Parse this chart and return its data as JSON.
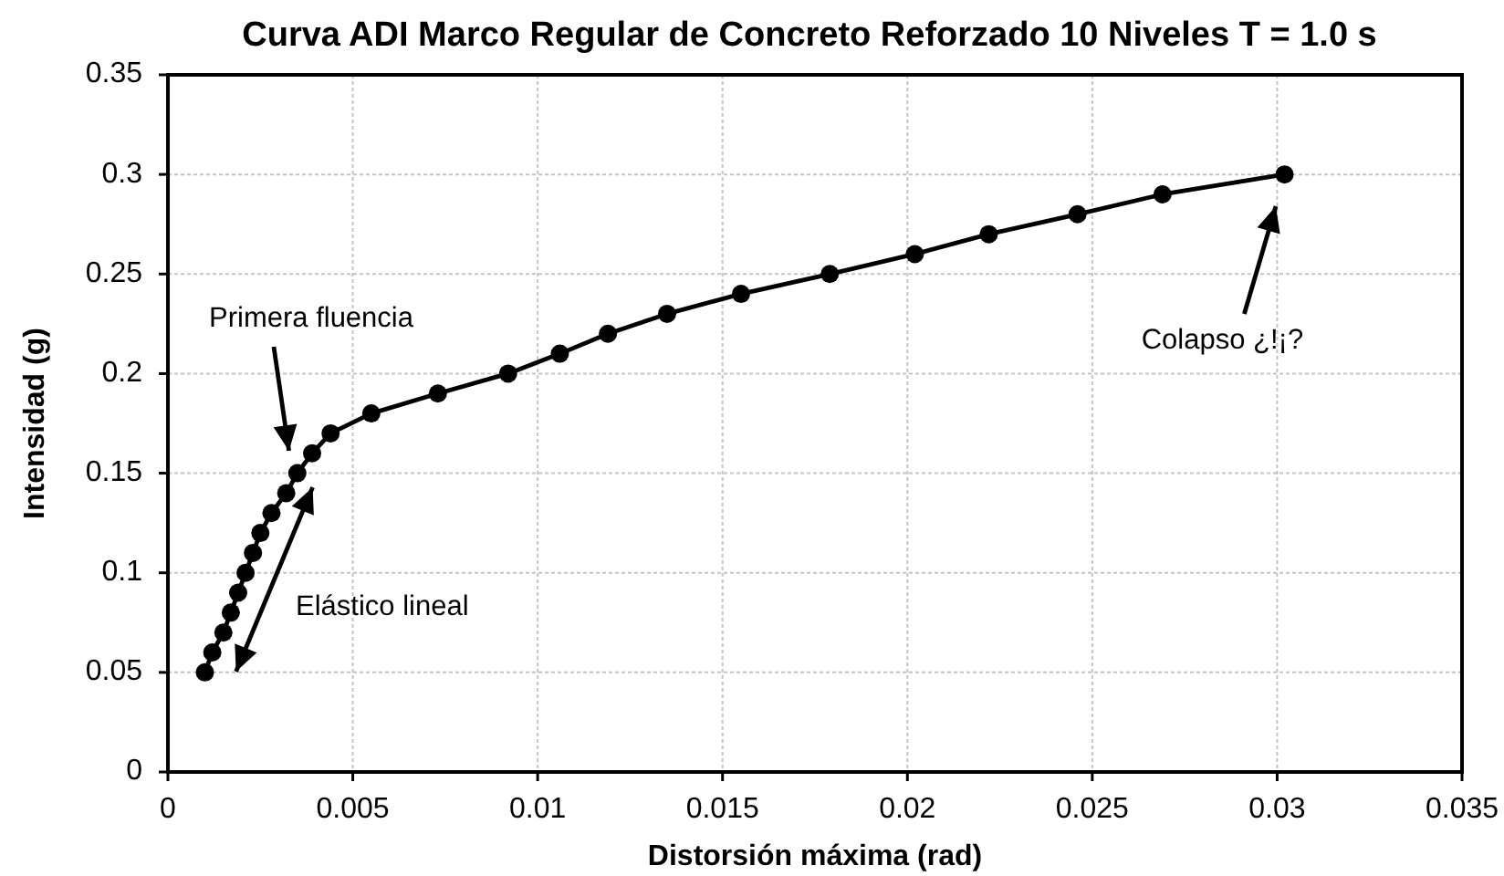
{
  "chart_data": {
    "type": "line",
    "title": "Curva ADI Marco Regular de Concreto Reforzado 10 Niveles T = 1.0 s",
    "xlabel": "Distorsión máxima (rad)",
    "ylabel": "Intensidad (g)",
    "x": [
      0.001,
      0.0012,
      0.0015,
      0.0017,
      0.0019,
      0.0021,
      0.0023,
      0.0025,
      0.0028,
      0.0032,
      0.0035,
      0.0039,
      0.0044,
      0.0055,
      0.0073,
      0.0092,
      0.0106,
      0.0119,
      0.0135,
      0.0155,
      0.0179,
      0.0202,
      0.0222,
      0.0246,
      0.0269,
      0.0302
    ],
    "series": [
      {
        "color": "#000000",
        "values": [
          0.05,
          0.06,
          0.07,
          0.08,
          0.09,
          0.1,
          0.11,
          0.12,
          0.13,
          0.14,
          0.15,
          0.16,
          0.17,
          0.18,
          0.19,
          0.2,
          0.21,
          0.22,
          0.23,
          0.24,
          0.25,
          0.26,
          0.27,
          0.28,
          0.29,
          0.3
        ]
      }
    ],
    "xlim": [
      0,
      0.035
    ],
    "ylim": [
      0,
      0.35
    ],
    "xticks": [
      0,
      0.005,
      0.01,
      0.015,
      0.02,
      0.025,
      0.03,
      0.035
    ],
    "yticks": [
      0,
      0.05,
      0.1,
      0.15,
      0.2,
      0.25,
      0.3,
      0.35
    ],
    "grid": true,
    "marker": "circle",
    "line_style": "solid",
    "annotations": [
      "Primera fluencia",
      "Elástico lineal",
      "Colapso ¿!¡?"
    ]
  }
}
